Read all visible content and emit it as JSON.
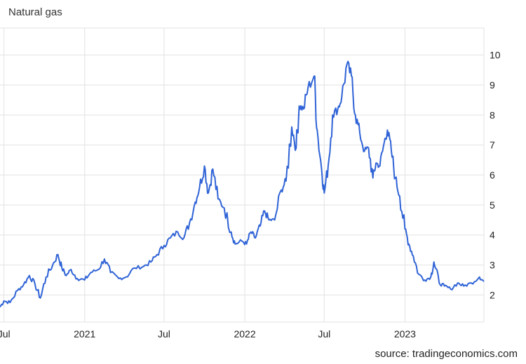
{
  "title": "Natural gas",
  "source_label": "source: tradingeconomics.com",
  "colors": {
    "line": "#2f63d6",
    "grid": "#e2e2e2",
    "text": "#222222"
  },
  "chart_data": {
    "type": "line",
    "title": "Natural gas",
    "xlabel": "",
    "ylabel": "",
    "ylim": [
      1.1,
      10.9
    ],
    "xlim": [
      "2020-06-22",
      "2023-06-30"
    ],
    "grid": true,
    "y_axis_side": "right",
    "y_ticks": [
      2,
      3,
      4,
      5,
      6,
      7,
      8,
      9,
      10
    ],
    "x_ticks": [
      {
        "date": "2020-07-01",
        "label": "Jul"
      },
      {
        "date": "2021-01-01",
        "label": "2021"
      },
      {
        "date": "2021-07-01",
        "label": "Jul"
      },
      {
        "date": "2022-01-01",
        "label": "2022"
      },
      {
        "date": "2022-07-01",
        "label": "Jul"
      },
      {
        "date": "2023-01-01",
        "label": "2023"
      }
    ],
    "series": [
      {
        "values": [
          [
            "2020-06-22",
            1.6
          ],
          [
            "2020-07-01",
            1.8
          ],
          [
            "2020-07-15",
            1.75
          ],
          [
            "2020-08-01",
            2.15
          ],
          [
            "2020-08-15",
            2.35
          ],
          [
            "2020-08-28",
            2.65
          ],
          [
            "2020-09-10",
            2.35
          ],
          [
            "2020-09-22",
            1.9
          ],
          [
            "2020-10-05",
            2.6
          ],
          [
            "2020-10-20",
            3.0
          ],
          [
            "2020-11-01",
            3.35
          ],
          [
            "2020-11-10",
            2.9
          ],
          [
            "2020-11-20",
            2.65
          ],
          [
            "2020-12-01",
            2.85
          ],
          [
            "2020-12-15",
            2.55
          ],
          [
            "2021-01-01",
            2.5
          ],
          [
            "2021-01-15",
            2.75
          ],
          [
            "2021-02-01",
            2.85
          ],
          [
            "2021-02-15",
            3.2
          ],
          [
            "2021-03-01",
            2.75
          ],
          [
            "2021-03-20",
            2.55
          ],
          [
            "2021-04-05",
            2.6
          ],
          [
            "2021-04-25",
            2.9
          ],
          [
            "2021-05-15",
            2.95
          ],
          [
            "2021-06-01",
            3.1
          ],
          [
            "2021-06-15",
            3.35
          ],
          [
            "2021-07-01",
            3.65
          ],
          [
            "2021-07-15",
            3.9
          ],
          [
            "2021-08-01",
            4.1
          ],
          [
            "2021-08-15",
            3.9
          ],
          [
            "2021-08-28",
            4.4
          ],
          [
            "2021-09-10",
            5.1
          ],
          [
            "2021-09-20",
            5.6
          ],
          [
            "2021-10-01",
            6.3
          ],
          [
            "2021-10-10",
            5.4
          ],
          [
            "2021-10-20",
            6.2
          ],
          [
            "2021-11-01",
            5.2
          ],
          [
            "2021-11-15",
            4.9
          ],
          [
            "2021-12-01",
            4.1
          ],
          [
            "2021-12-10",
            3.7
          ],
          [
            "2021-12-25",
            3.8
          ],
          [
            "2022-01-05",
            3.7
          ],
          [
            "2022-01-15",
            4.1
          ],
          [
            "2022-01-25",
            3.9
          ],
          [
            "2022-02-05",
            4.3
          ],
          [
            "2022-02-15",
            4.8
          ],
          [
            "2022-02-25",
            4.5
          ],
          [
            "2022-03-10",
            4.5
          ],
          [
            "2022-03-25",
            5.5
          ],
          [
            "2022-04-05",
            5.8
          ],
          [
            "2022-04-18",
            7.6
          ],
          [
            "2022-04-28",
            6.9
          ],
          [
            "2022-05-05",
            8.3
          ],
          [
            "2022-05-15",
            8.2
          ],
          [
            "2022-05-25",
            8.9
          ],
          [
            "2022-06-08",
            9.3
          ],
          [
            "2022-06-15",
            7.5
          ],
          [
            "2022-06-25",
            6.2
          ],
          [
            "2022-07-01",
            5.4
          ],
          [
            "2022-07-10",
            6.3
          ],
          [
            "2022-07-20",
            8.0
          ],
          [
            "2022-08-01",
            8.2
          ],
          [
            "2022-08-10",
            8.6
          ],
          [
            "2022-08-22",
            9.7
          ],
          [
            "2022-09-01",
            9.3
          ],
          [
            "2022-09-10",
            8.0
          ],
          [
            "2022-09-20",
            7.4
          ],
          [
            "2022-10-01",
            6.8
          ],
          [
            "2022-10-10",
            6.9
          ],
          [
            "2022-10-20",
            5.9
          ],
          [
            "2022-10-27",
            6.4
          ],
          [
            "2022-11-05",
            6.3
          ],
          [
            "2022-11-15",
            7.1
          ],
          [
            "2022-11-22",
            7.5
          ],
          [
            "2022-12-01",
            6.8
          ],
          [
            "2022-12-10",
            5.9
          ],
          [
            "2022-12-20",
            5.3
          ],
          [
            "2023-01-01",
            4.2
          ],
          [
            "2023-01-10",
            3.7
          ],
          [
            "2023-01-20",
            3.3
          ],
          [
            "2023-02-01",
            2.7
          ],
          [
            "2023-02-15",
            2.5
          ],
          [
            "2023-03-01",
            2.6
          ],
          [
            "2023-03-08",
            3.1
          ],
          [
            "2023-03-20",
            2.4
          ],
          [
            "2023-04-01",
            2.3
          ],
          [
            "2023-04-15",
            2.2
          ],
          [
            "2023-05-01",
            2.4
          ],
          [
            "2023-05-15",
            2.3
          ],
          [
            "2023-06-01",
            2.4
          ],
          [
            "2023-06-20",
            2.6
          ],
          [
            "2023-06-30",
            2.45
          ]
        ]
      }
    ]
  }
}
